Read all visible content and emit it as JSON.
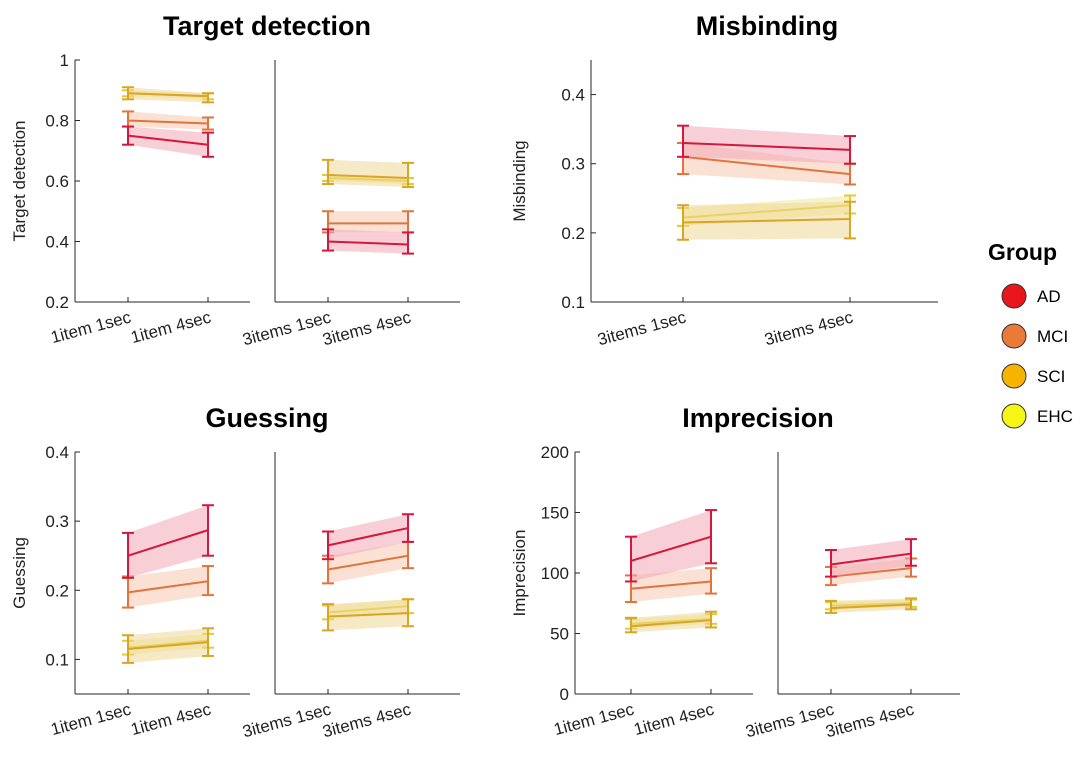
{
  "legend": {
    "title": "Group",
    "items": [
      {
        "label": "AD",
        "marker": "#e8151b",
        "line": "#d6163d",
        "band": "#f3a7b4"
      },
      {
        "label": "MCI",
        "marker": "#ea7a38",
        "line": "#e0743c",
        "band": "#f6c8ae"
      },
      {
        "label": "SCI",
        "marker": "#f6b400",
        "line": "#d9a524",
        "band": "#efd796"
      },
      {
        "label": "EHC",
        "marker": "#f5f516",
        "line": "#e0cc2a",
        "band": "#f2e8a0"
      }
    ]
  },
  "chart_data": [
    {
      "type": "line",
      "title": "Target detection",
      "ylabel": "Target detection",
      "ylim": [
        0.2,
        1
      ],
      "yticks": [
        "0.2",
        "0.4",
        "0.6",
        "0.8",
        "1"
      ],
      "ytick_values": [
        0.2,
        0.4,
        0.6,
        0.8,
        1
      ],
      "panels": [
        {
          "categories": [
            "1item 1sec",
            "1item 4sec"
          ],
          "series": [
            {
              "name": "AD",
              "values": [
                0.75,
                0.72
              ],
              "lower": [
                0.72,
                0.68
              ],
              "upper": [
                0.78,
                0.76
              ]
            },
            {
              "name": "MCI",
              "values": [
                0.8,
                0.79
              ],
              "lower": [
                0.78,
                0.77
              ],
              "upper": [
                0.83,
                0.81
              ]
            },
            {
              "name": "SCI",
              "values": [
                0.89,
                0.88
              ],
              "lower": [
                0.87,
                0.86
              ],
              "upper": [
                0.91,
                0.89
              ]
            },
            {
              "name": "EHC",
              "values": [
                0.89,
                0.88
              ],
              "lower": [
                0.88,
                0.87
              ],
              "upper": [
                0.9,
                0.89
              ]
            }
          ]
        },
        {
          "categories": [
            "3items 1sec",
            "3items 4sec"
          ],
          "series": [
            {
              "name": "AD",
              "values": [
                0.4,
                0.39
              ],
              "lower": [
                0.37,
                0.36
              ],
              "upper": [
                0.44,
                0.43
              ]
            },
            {
              "name": "MCI",
              "values": [
                0.46,
                0.46
              ],
              "lower": [
                0.43,
                0.43
              ],
              "upper": [
                0.5,
                0.5
              ]
            },
            {
              "name": "SCI",
              "values": [
                0.62,
                0.61
              ],
              "lower": [
                0.59,
                0.58
              ],
              "upper": [
                0.67,
                0.66
              ]
            },
            {
              "name": "EHC",
              "values": [
                0.61,
                0.6
              ],
              "lower": [
                0.6,
                0.59
              ],
              "upper": [
                0.62,
                0.61
              ]
            }
          ]
        }
      ]
    },
    {
      "type": "line",
      "title": "Misbinding",
      "ylabel": "Misbinding",
      "ylim": [
        0.1,
        0.45
      ],
      "yticks": [
        "0.1",
        "0.2",
        "0.3",
        "0.4"
      ],
      "ytick_values": [
        0.1,
        0.2,
        0.3,
        0.4
      ],
      "panels": [
        {
          "categories": [
            "3items 1sec",
            "3items 4sec"
          ],
          "series": [
            {
              "name": "AD",
              "values": [
                0.33,
                0.32
              ],
              "lower": [
                0.31,
                0.3
              ],
              "upper": [
                0.355,
                0.34
              ]
            },
            {
              "name": "MCI",
              "values": [
                0.31,
                0.285
              ],
              "lower": [
                0.285,
                0.27
              ],
              "upper": [
                0.33,
                0.3
              ]
            },
            {
              "name": "SCI",
              "values": [
                0.215,
                0.22
              ],
              "lower": [
                0.19,
                0.192
              ],
              "upper": [
                0.24,
                0.245
              ]
            },
            {
              "name": "EHC",
              "values": [
                0.222,
                0.24
              ],
              "lower": [
                0.21,
                0.228
              ],
              "upper": [
                0.236,
                0.254
              ]
            }
          ]
        }
      ]
    },
    {
      "type": "line",
      "title": "Guessing",
      "ylabel": "Guessing",
      "ylim": [
        0.05,
        0.4
      ],
      "yticks": [
        "0.1",
        "0.2",
        "0.3",
        "0.4"
      ],
      "ytick_values": [
        0.1,
        0.2,
        0.3,
        0.4
      ],
      "panels": [
        {
          "categories": [
            "1item 1sec",
            "1item 4sec"
          ],
          "series": [
            {
              "name": "AD",
              "values": [
                0.25,
                0.287
              ],
              "lower": [
                0.218,
                0.25
              ],
              "upper": [
                0.283,
                0.323
              ]
            },
            {
              "name": "MCI",
              "values": [
                0.197,
                0.213
              ],
              "lower": [
                0.175,
                0.193
              ],
              "upper": [
                0.22,
                0.235
              ]
            },
            {
              "name": "SCI",
              "values": [
                0.115,
                0.125
              ],
              "lower": [
                0.095,
                0.105
              ],
              "upper": [
                0.135,
                0.145
              ]
            },
            {
              "name": "EHC",
              "values": [
                0.117,
                0.127
              ],
              "lower": [
                0.107,
                0.117
              ],
              "upper": [
                0.127,
                0.137
              ]
            }
          ]
        },
        {
          "categories": [
            "3items 1sec",
            "3items 4sec"
          ],
          "series": [
            {
              "name": "AD",
              "values": [
                0.265,
                0.29
              ],
              "lower": [
                0.245,
                0.27
              ],
              "upper": [
                0.285,
                0.31
              ]
            },
            {
              "name": "MCI",
              "values": [
                0.23,
                0.25
              ],
              "lower": [
                0.21,
                0.232
              ],
              "upper": [
                0.25,
                0.27
              ]
            },
            {
              "name": "SCI",
              "values": [
                0.162,
                0.167
              ],
              "lower": [
                0.142,
                0.148
              ],
              "upper": [
                0.18,
                0.187
              ]
            },
            {
              "name": "EHC",
              "values": [
                0.168,
                0.177
              ],
              "lower": [
                0.158,
                0.167
              ],
              "upper": [
                0.178,
                0.187
              ]
            }
          ]
        }
      ]
    },
    {
      "type": "line",
      "title": "Imprecision",
      "ylabel": "Imprecision",
      "ylim": [
        0,
        200
      ],
      "yticks": [
        "0",
        "50",
        "100",
        "150",
        "200"
      ],
      "ytick_values": [
        0,
        50,
        100,
        150,
        200
      ],
      "panels": [
        {
          "categories": [
            "1item 1sec",
            "1item 4sec"
          ],
          "series": [
            {
              "name": "AD",
              "values": [
                110,
                130
              ],
              "lower": [
                93,
                108
              ],
              "upper": [
                130,
                152
              ]
            },
            {
              "name": "MCI",
              "values": [
                87,
                93
              ],
              "lower": [
                76,
                83
              ],
              "upper": [
                98,
                104
              ]
            },
            {
              "name": "SCI",
              "values": [
                56,
                61
              ],
              "lower": [
                51,
                55
              ],
              "upper": [
                63,
                68
              ]
            },
            {
              "name": "EHC",
              "values": [
                58,
                62
              ],
              "lower": [
                54,
                58
              ],
              "upper": [
                62,
                66
              ]
            }
          ]
        },
        {
          "categories": [
            "3items 1sec",
            "3items 4sec"
          ],
          "series": [
            {
              "name": "AD",
              "values": [
                107,
                116
              ],
              "lower": [
                97,
                106
              ],
              "upper": [
                119,
                128
              ]
            },
            {
              "name": "MCI",
              "values": [
                97,
                104
              ],
              "lower": [
                90,
                97
              ],
              "upper": [
                105,
                112
              ]
            },
            {
              "name": "SCI",
              "values": [
                71,
                74
              ],
              "lower": [
                67,
                70
              ],
              "upper": [
                77,
                79
              ]
            },
            {
              "name": "EHC",
              "values": [
                73,
                75
              ],
              "lower": [
                70,
                72
              ],
              "upper": [
                76,
                78
              ]
            }
          ]
        }
      ]
    }
  ]
}
